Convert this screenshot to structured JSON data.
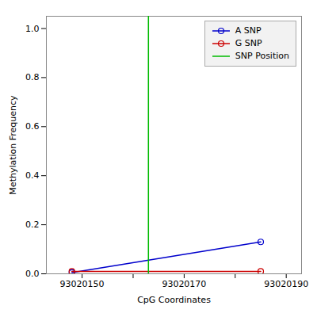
{
  "chart_data": {
    "type": "line",
    "xlabel": "CpG Coordinates",
    "ylabel": "Methylation Frequency",
    "xlim": [
      93020143,
      93020193
    ],
    "ylim": [
      0.0,
      1.05
    ],
    "xticks": [
      93020150,
      {
        "value": 93020160,
        "label": ""
      },
      93020170,
      {
        "value": 93020180,
        "label": ""
      },
      93020190
    ],
    "yticks": [
      {
        "value": 0.0,
        "label": "0.0"
      },
      0.2,
      0.4,
      0.6,
      0.8,
      {
        "value": 1.0,
        "label": "1.0"
      }
    ],
    "grid": false,
    "legend": "upper right",
    "series": [
      {
        "name": "A SNP",
        "type": "line",
        "marker": "circle",
        "color": "#0000CC",
        "x": [
          93020148,
          93020185
        ],
        "values": [
          0.005,
          0.13
        ]
      },
      {
        "name": "G SNP",
        "type": "line",
        "marker": "circle",
        "color": "#CC0000",
        "x": [
          93020148,
          93020185
        ],
        "values": [
          0.01,
          0.01
        ]
      },
      {
        "name": "SNP Position",
        "type": "vline",
        "color": "#00BB00",
        "x": 93020163
      }
    ]
  }
}
